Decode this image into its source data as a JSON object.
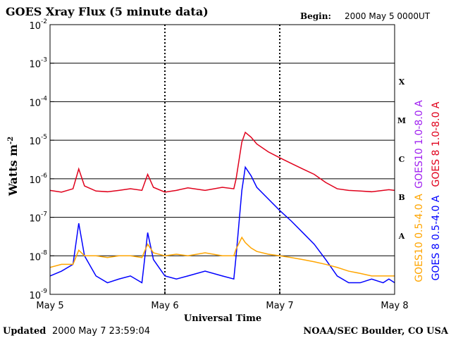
{
  "title": "GOES Xray Flux (5 minute data)",
  "begin_label": "Begin:",
  "begin_value": "2000 May 5 0000UT",
  "ylabel": "Watts m",
  "ylabel_exp": "-2",
  "xlabel": "Universal Time",
  "updated_label": "Updated",
  "updated_value": "2000 May  7 23:59:04",
  "credit": "NOAA/SEC Boulder, CO USA",
  "x_ticks": [
    "May 5",
    "May 6",
    "May 7",
    "May 8"
  ],
  "y_ticks": [
    {
      "base": "10",
      "exp": "-2"
    },
    {
      "base": "10",
      "exp": "-3"
    },
    {
      "base": "10",
      "exp": "-4"
    },
    {
      "base": "10",
      "exp": "-5"
    },
    {
      "base": "10",
      "exp": "-6"
    },
    {
      "base": "10",
      "exp": "-7"
    },
    {
      "base": "10",
      "exp": "-8"
    },
    {
      "base": "10",
      "exp": "-9"
    }
  ],
  "class_labels": [
    "X",
    "M",
    "C",
    "B",
    "A"
  ],
  "legend": [
    {
      "label": "GOES10 1.0-8.0 A",
      "color": "#a020f0"
    },
    {
      "label": "GOES 8 1.0-8.0 A",
      "color": "#e0001b"
    },
    {
      "label": "GOES10 0.5-4.0 A",
      "color": "#ffa500"
    },
    {
      "label": "GOES 8 0.5-4.0 A",
      "color": "#0000ff"
    }
  ],
  "chart_data": {
    "type": "line",
    "title": "GOES Xray Flux (5 minute data)",
    "xlabel": "Universal Time",
    "ylabel": "Watts m-2",
    "yscale": "log",
    "ylim": [
      1e-09,
      0.01
    ],
    "xlim": [
      0,
      3
    ],
    "x_unit": "days since 2000 May 5 0000UT",
    "grid": true,
    "series": [
      {
        "name": "GOES 8 1.0-8.0 A",
        "color": "#e0001b",
        "points": [
          [
            0.0,
            5e-07
          ],
          [
            0.1,
            4.5e-07
          ],
          [
            0.2,
            5.5e-07
          ],
          [
            0.25,
            1.8e-06
          ],
          [
            0.3,
            6.5e-07
          ],
          [
            0.4,
            4.8e-07
          ],
          [
            0.5,
            4.6e-07
          ],
          [
            0.6,
            5e-07
          ],
          [
            0.7,
            5.5e-07
          ],
          [
            0.8,
            5e-07
          ],
          [
            0.85,
            1.3e-06
          ],
          [
            0.9,
            6e-07
          ],
          [
            1.0,
            4.5e-07
          ],
          [
            1.1,
            5e-07
          ],
          [
            1.2,
            5.8e-07
          ],
          [
            1.35,
            5e-07
          ],
          [
            1.5,
            6e-07
          ],
          [
            1.6,
            5.5e-07
          ],
          [
            1.62,
            1e-06
          ],
          [
            1.67,
            9e-06
          ],
          [
            1.7,
            1.6e-05
          ],
          [
            1.75,
            1.2e-05
          ],
          [
            1.8,
            8e-06
          ],
          [
            1.9,
            5e-06
          ],
          [
            2.0,
            3.5e-06
          ],
          [
            2.1,
            2.5e-06
          ],
          [
            2.2,
            1.8e-06
          ],
          [
            2.3,
            1.3e-06
          ],
          [
            2.4,
            8e-07
          ],
          [
            2.5,
            5.5e-07
          ],
          [
            2.6,
            5e-07
          ],
          [
            2.7,
            4.8e-07
          ],
          [
            2.8,
            4.6e-07
          ],
          [
            2.9,
            5e-07
          ],
          [
            2.95,
            5.2e-07
          ],
          [
            3.0,
            5e-07
          ]
        ]
      },
      {
        "name": "GOES 8 0.5-4.0 A",
        "color": "#0000ff",
        "points": [
          [
            0.0,
            3e-09
          ],
          [
            0.1,
            4e-09
          ],
          [
            0.2,
            6e-09
          ],
          [
            0.25,
            7e-08
          ],
          [
            0.3,
            1e-08
          ],
          [
            0.4,
            3e-09
          ],
          [
            0.5,
            2e-09
          ],
          [
            0.6,
            2.5e-09
          ],
          [
            0.7,
            3e-09
          ],
          [
            0.8,
            2e-09
          ],
          [
            0.85,
            4e-08
          ],
          [
            0.9,
            8e-09
          ],
          [
            1.0,
            3e-09
          ],
          [
            1.1,
            2.5e-09
          ],
          [
            1.2,
            3e-09
          ],
          [
            1.35,
            4e-09
          ],
          [
            1.5,
            3e-09
          ],
          [
            1.6,
            2.5e-09
          ],
          [
            1.62,
            1e-08
          ],
          [
            1.67,
            5e-07
          ],
          [
            1.7,
            2e-06
          ],
          [
            1.75,
            1.2e-06
          ],
          [
            1.8,
            6e-07
          ],
          [
            1.9,
            3e-07
          ],
          [
            2.0,
            1.5e-07
          ],
          [
            2.1,
            8e-08
          ],
          [
            2.2,
            4e-08
          ],
          [
            2.3,
            2e-08
          ],
          [
            2.4,
            8e-09
          ],
          [
            2.5,
            3e-09
          ],
          [
            2.6,
            2e-09
          ],
          [
            2.7,
            2e-09
          ],
          [
            2.8,
            2.5e-09
          ],
          [
            2.9,
            2e-09
          ],
          [
            2.95,
            2.5e-09
          ],
          [
            3.0,
            2e-09
          ]
        ]
      },
      {
        "name": "GOES10 0.5-4.0 A",
        "color": "#ffa500",
        "points": [
          [
            0.0,
            5e-09
          ],
          [
            0.1,
            6e-09
          ],
          [
            0.2,
            6e-09
          ],
          [
            0.25,
            1.4e-08
          ],
          [
            0.3,
            1e-08
          ],
          [
            0.4,
            1e-08
          ],
          [
            0.5,
            9e-09
          ],
          [
            0.6,
            1e-08
          ],
          [
            0.7,
            1e-08
          ],
          [
            0.8,
            9e-09
          ],
          [
            0.85,
            2e-08
          ],
          [
            0.9,
            1.2e-08
          ],
          [
            1.0,
            1e-08
          ],
          [
            1.1,
            1.1e-08
          ],
          [
            1.2,
            1e-08
          ],
          [
            1.35,
            1.2e-08
          ],
          [
            1.5,
            1e-08
          ],
          [
            1.6,
            1e-08
          ],
          [
            1.62,
            1.5e-08
          ],
          [
            1.67,
            3e-08
          ],
          [
            1.7,
            2.2e-08
          ],
          [
            1.75,
            1.6e-08
          ],
          [
            1.8,
            1.3e-08
          ],
          [
            1.9,
            1.1e-08
          ],
          [
            2.0,
            1e-08
          ],
          [
            2.1,
            9e-09
          ],
          [
            2.2,
            8e-09
          ],
          [
            2.3,
            7e-09
          ],
          [
            2.4,
            6e-09
          ],
          [
            2.5,
            5e-09
          ],
          [
            2.6,
            4e-09
          ],
          [
            2.7,
            3.5e-09
          ],
          [
            2.8,
            3e-09
          ],
          [
            2.9,
            3e-09
          ],
          [
            2.95,
            3e-09
          ],
          [
            3.0,
            3e-09
          ]
        ]
      },
      {
        "name": "GOES10 1.0-8.0 A",
        "color": "#a020f0",
        "points": []
      }
    ]
  }
}
